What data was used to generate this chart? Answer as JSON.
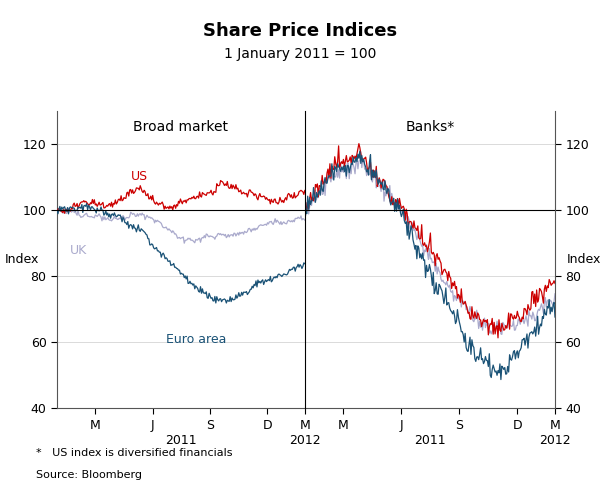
{
  "title": "Share Price Indices",
  "subtitle": "1 January 2011 = 100",
  "left_panel_label": "Broad market",
  "right_panel_label": "Banks*",
  "ylabel_left": "Index",
  "ylabel_right": "Index",
  "ylim": [
    40,
    130
  ],
  "yticks": [
    40,
    60,
    80,
    100,
    120
  ],
  "footnote1": "*   US index is diversified financials",
  "footnote2": "Source: Bloomberg",
  "colors": {
    "US": "#cc0000",
    "UK": "#aaaacc",
    "Euro": "#1a5276"
  },
  "lw": 0.9
}
